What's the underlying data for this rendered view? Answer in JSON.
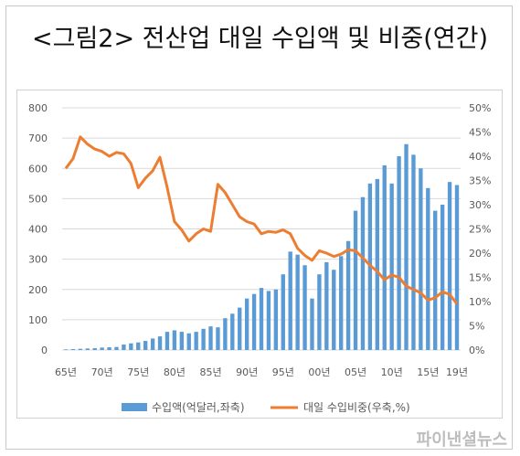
{
  "title": "<그림2> 전산업 대일 수입액 및 비중(연간)",
  "watermark": "파이낸셜뉴스",
  "colors": {
    "bar": "#5b9bd5",
    "line": "#ed7d31",
    "grid": "#d9d9d9",
    "text": "#595959"
  },
  "chart_data": {
    "type": "bar",
    "grid": true,
    "legend_position": "bottom",
    "x_tick_labels": [
      "65년",
      "70년",
      "75년",
      "80년",
      "85년",
      "90년",
      "95년",
      "00년",
      "05년",
      "10년",
      "15년",
      "19년"
    ],
    "x": [
      1965,
      1966,
      1967,
      1968,
      1969,
      1970,
      1971,
      1972,
      1973,
      1974,
      1975,
      1976,
      1977,
      1978,
      1979,
      1980,
      1981,
      1982,
      1983,
      1984,
      1985,
      1986,
      1987,
      1988,
      1989,
      1990,
      1991,
      1992,
      1993,
      1994,
      1995,
      1996,
      1997,
      1998,
      1999,
      2000,
      2001,
      2002,
      2003,
      2004,
      2005,
      2006,
      2007,
      2008,
      2009,
      2010,
      2011,
      2012,
      2013,
      2014,
      2015,
      2016,
      2017,
      2018,
      2019
    ],
    "y_left": {
      "ylim": [
        0,
        800
      ],
      "ticks": [
        "0",
        "100",
        "200",
        "300",
        "400",
        "500",
        "600",
        "700",
        "800"
      ]
    },
    "y_right": {
      "ylim": [
        0,
        50
      ],
      "ticks": [
        "0%",
        "5%",
        "10%",
        "15%",
        "20%",
        "25%",
        "30%",
        "35%",
        "40%",
        "45%",
        "50%"
      ]
    },
    "series": [
      {
        "name": "수입액(억달러,좌축)",
        "type": "bar",
        "axis": "left",
        "values": [
          2,
          3,
          4,
          5,
          6,
          8,
          9,
          10,
          18,
          22,
          25,
          30,
          38,
          45,
          60,
          65,
          60,
          55,
          60,
          70,
          78,
          75,
          105,
          120,
          140,
          170,
          185,
          205,
          195,
          200,
          250,
          325,
          315,
          280,
          170,
          250,
          290,
          265,
          310,
          360,
          460,
          505,
          550,
          565,
          610,
          550,
          640,
          680,
          645,
          600,
          535,
          460,
          480,
          555,
          545
        ]
      },
      {
        "name": "대일 수입비중(우축,%)",
        "type": "line",
        "axis": "right",
        "values": [
          37.5,
          39.5,
          44.0,
          42.5,
          41.5,
          41.0,
          40.0,
          40.8,
          40.5,
          38.5,
          33.5,
          35.5,
          37.0,
          39.8,
          33.5,
          26.5,
          24.8,
          22.5,
          24.0,
          25.0,
          24.5,
          34.2,
          32.5,
          30.0,
          27.5,
          26.5,
          26.0,
          24.0,
          24.5,
          24.3,
          24.8,
          24.0,
          21.0,
          19.5,
          18.5,
          20.5,
          20.0,
          19.3,
          19.8,
          20.7,
          20.5,
          19.0,
          17.5,
          16.2,
          14.5,
          15.5,
          15.0,
          13.2,
          12.5,
          11.8,
          10.3,
          10.8,
          12.0,
          11.5,
          9.5
        ]
      }
    ]
  }
}
